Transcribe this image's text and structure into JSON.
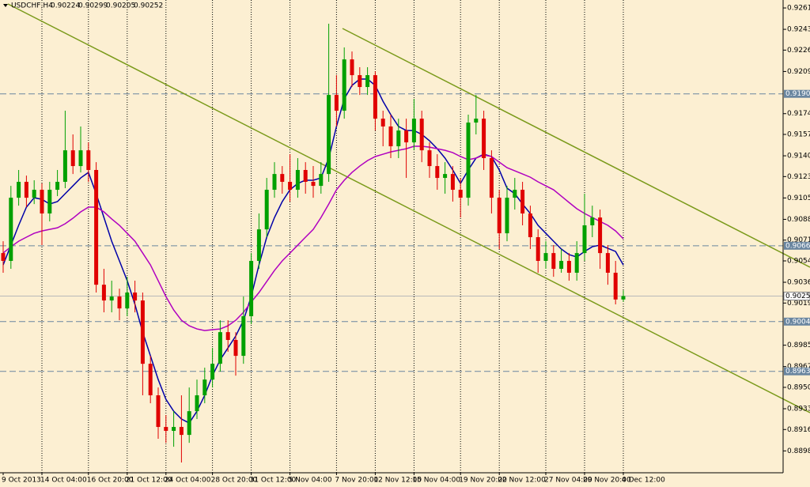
{
  "chart_data": {
    "type": "candlestick",
    "title": "USDCHF,H4",
    "categories": [
      "9 Oct 2013",
      null,
      null,
      null,
      null,
      "14 Oct 04:00",
      null,
      null,
      null,
      null,
      null,
      "16 Oct 20:00",
      null,
      null,
      null,
      null,
      "21 Oct 12:00",
      null,
      null,
      null,
      null,
      "24 Oct 04:00",
      null,
      null,
      null,
      null,
      null,
      "28 Oct 20:00",
      null,
      null,
      null,
      null,
      "31 Oct 12:00",
      null,
      null,
      null,
      null,
      "5 Nov 04:00",
      null,
      null,
      null,
      null,
      null,
      "7 Nov 20:00",
      null,
      null,
      null,
      null,
      "12 Nov 12:00",
      null,
      null,
      null,
      null,
      "15 Nov 04:00",
      null,
      null,
      null,
      null,
      null,
      "19 Nov 20:00",
      null,
      null,
      null,
      null,
      "22 Nov 12:00",
      null,
      null,
      null,
      null,
      null,
      "27 Nov 04:00",
      null,
      null,
      null,
      null,
      "29 Nov 20:00",
      null,
      null,
      null,
      null,
      "4 Dec 12:00"
    ],
    "ohlc": [
      [
        0.90604,
        0.90701,
        0.90443,
        0.9054
      ],
      [
        0.9054,
        0.91154,
        0.90475,
        0.91057
      ],
      [
        0.91057,
        0.91284,
        0.90992,
        0.91187
      ],
      [
        0.91187,
        0.91238,
        0.9098,
        0.91057
      ],
      [
        0.91057,
        0.912,
        0.91005,
        0.91122
      ],
      [
        0.91122,
        0.91174,
        0.90669,
        0.90928
      ],
      [
        0.90928,
        0.91187,
        0.90863,
        0.91122
      ],
      [
        0.91122,
        0.91284,
        0.9107,
        0.91187
      ],
      [
        0.91187,
        0.91769,
        0.91135,
        0.91445
      ],
      [
        0.91445,
        0.91575,
        0.91251,
        0.91316
      ],
      [
        0.91316,
        0.9164,
        0.91264,
        0.91445
      ],
      [
        0.91445,
        0.9151,
        0.91187,
        0.91284
      ],
      [
        0.91284,
        0.91348,
        0.90281,
        0.90345
      ],
      [
        0.90345,
        0.90475,
        0.90119,
        0.90216
      ],
      [
        0.90216,
        0.90378,
        0.90119,
        0.90248
      ],
      [
        0.90248,
        0.90313,
        0.90054,
        0.90151
      ],
      [
        0.90151,
        0.9041,
        0.90087,
        0.90281
      ],
      [
        0.90281,
        0.90378,
        0.90119,
        0.90216
      ],
      [
        0.90216,
        0.90281,
        0.8944,
        0.89698
      ],
      [
        0.89698,
        0.89763,
        0.89375,
        0.8944
      ],
      [
        0.8944,
        0.89504,
        0.89084,
        0.89181
      ],
      [
        0.89181,
        0.89278,
        0.89051,
        0.89149
      ],
      [
        0.89149,
        0.8931,
        0.89019,
        0.89181
      ],
      [
        0.89181,
        0.8944,
        0.8889,
        0.89116
      ],
      [
        0.89116,
        0.89504,
        0.89051,
        0.8931
      ],
      [
        0.8931,
        0.89569,
        0.89246,
        0.8944
      ],
      [
        0.8944,
        0.89666,
        0.89375,
        0.89569
      ],
      [
        0.89569,
        0.89828,
        0.89504,
        0.89698
      ],
      [
        0.89698,
        0.90054,
        0.89634,
        0.89957
      ],
      [
        0.89957,
        0.90054,
        0.89796,
        0.89893
      ],
      [
        0.89893,
        0.89957,
        0.89601,
        0.89763
      ],
      [
        0.89763,
        0.90248,
        0.89698,
        0.90087
      ],
      [
        0.90087,
        0.90604,
        0.90022,
        0.9054
      ],
      [
        0.9054,
        0.90928,
        0.90475,
        0.90798
      ],
      [
        0.90798,
        0.91219,
        0.90734,
        0.91122
      ],
      [
        0.91122,
        0.91348,
        0.91057,
        0.91251
      ],
      [
        0.91251,
        0.91316,
        0.9109,
        0.91187
      ],
      [
        0.91187,
        0.91413,
        0.91025,
        0.91122
      ],
      [
        0.91122,
        0.91381,
        0.91057,
        0.91284
      ],
      [
        0.91284,
        0.91348,
        0.9109,
        0.91187
      ],
      [
        0.91187,
        0.91316,
        0.91057,
        0.91154
      ],
      [
        0.91154,
        0.91348,
        0.9109,
        0.91251
      ],
      [
        0.91251,
        0.92481,
        0.91187,
        0.91898
      ],
      [
        0.91898,
        0.9206,
        0.9164,
        0.91769
      ],
      [
        0.91769,
        0.92287,
        0.91704,
        0.92189
      ],
      [
        0.92189,
        0.92254,
        0.91963,
        0.9206
      ],
      [
        0.9206,
        0.92125,
        0.91898,
        0.91963
      ],
      [
        0.91963,
        0.92125,
        0.91898,
        0.9206
      ],
      [
        0.9206,
        0.92092,
        0.91607,
        0.91704
      ],
      [
        0.91704,
        0.91769,
        0.91478,
        0.9164
      ],
      [
        0.9164,
        0.91737,
        0.91381,
        0.91478
      ],
      [
        0.91478,
        0.91704,
        0.91381,
        0.91607
      ],
      [
        0.91607,
        0.91704,
        0.91219,
        0.9151
      ],
      [
        0.9151,
        0.91866,
        0.91445,
        0.91704
      ],
      [
        0.91704,
        0.91769,
        0.91348,
        0.91445
      ],
      [
        0.91445,
        0.9151,
        0.91219,
        0.91316
      ],
      [
        0.91316,
        0.91413,
        0.91122,
        0.91219
      ],
      [
        0.91219,
        0.91348,
        0.9109,
        0.91251
      ],
      [
        0.91251,
        0.91316,
        0.91025,
        0.91122
      ],
      [
        0.91122,
        0.91219,
        0.90895,
        0.91057
      ],
      [
        0.91057,
        0.91737,
        0.90992,
        0.91672
      ],
      [
        0.91672,
        0.91898,
        0.91575,
        0.91704
      ],
      [
        0.91704,
        0.91769,
        0.91284,
        0.91381
      ],
      [
        0.91381,
        0.91445,
        0.90928,
        0.91057
      ],
      [
        0.91057,
        0.91122,
        0.90637,
        0.90766
      ],
      [
        0.90766,
        0.91154,
        0.90701,
        0.91057
      ],
      [
        0.91057,
        0.91219,
        0.9096,
        0.91122
      ],
      [
        0.91122,
        0.91187,
        0.90831,
        0.90928
      ],
      [
        0.90928,
        0.90992,
        0.90637,
        0.90734
      ],
      [
        0.90734,
        0.90798,
        0.90443,
        0.9054
      ],
      [
        0.9054,
        0.90701,
        0.90475,
        0.90604
      ],
      [
        0.90604,
        0.90669,
        0.9041,
        0.90475
      ],
      [
        0.90475,
        0.90637,
        0.90443,
        0.9054
      ],
      [
        0.9054,
        0.90604,
        0.90378,
        0.90443
      ],
      [
        0.90443,
        0.90701,
        0.90378,
        0.90604
      ],
      [
        0.90604,
        0.9109,
        0.9054,
        0.90831
      ],
      [
        0.90831,
        0.90992,
        0.90734,
        0.90895
      ],
      [
        0.90895,
        0.9096,
        0.90475,
        0.90604
      ],
      [
        0.90604,
        0.90669,
        0.90345,
        0.90443
      ],
      [
        0.90443,
        0.9054,
        0.90184,
        0.90224
      ],
      [
        0.90224,
        0.90299,
        0.90205,
        0.90252
      ]
    ],
    "up_color": "#00a000",
    "down_color": "#e00000",
    "lines": [
      {
        "color": "#0000a8",
        "values": [
          0.90507,
          0.90669,
          0.90831,
          0.9098,
          0.91057,
          0.91044,
          0.91005,
          0.91025,
          0.9109,
          0.91154,
          0.91219,
          0.91264,
          0.9109,
          0.90895,
          0.90701,
          0.9054,
          0.90378,
          0.90184,
          0.89957,
          0.89763,
          0.89569,
          0.89407,
          0.8931,
          0.89246,
          0.89213,
          0.8931,
          0.8944,
          0.89601,
          0.89731,
          0.89828,
          0.89925,
          0.90054,
          0.90248,
          0.90507,
          0.90734,
          0.90895,
          0.91025,
          0.91122,
          0.91174,
          0.912,
          0.912,
          0.91219,
          0.91381,
          0.9164,
          0.91866,
          0.91976,
          0.92028,
          0.92028,
          0.91976,
          0.91846,
          0.91737,
          0.9164,
          0.91607,
          0.91607,
          0.91575,
          0.91523,
          0.91458,
          0.91381,
          0.91284,
          0.91174,
          0.91284,
          0.91381,
          0.91413,
          0.91394,
          0.91284,
          0.91135,
          0.9109,
          0.91005,
          0.90928,
          0.90831,
          0.90766,
          0.90701,
          0.90637,
          0.90591,
          0.90572,
          0.90617,
          0.90656,
          0.90669,
          0.90643,
          0.90617,
          0.90507
        ]
      },
      {
        "color": "#b000c0",
        "values": [
          0.90604,
          0.90656,
          0.90701,
          0.90734,
          0.90766,
          0.90785,
          0.90798,
          0.90811,
          0.90844,
          0.90889,
          0.90941,
          0.9098,
          0.9098,
          0.90941,
          0.90883,
          0.90831,
          0.90766,
          0.90701,
          0.90604,
          0.90507,
          0.90378,
          0.90248,
          0.90138,
          0.90054,
          0.90009,
          0.89983,
          0.8997,
          0.89977,
          0.89983,
          0.90009,
          0.90054,
          0.90119,
          0.90203,
          0.90281,
          0.90371,
          0.90462,
          0.9054,
          0.90604,
          0.90669,
          0.90734,
          0.90798,
          0.90895,
          0.91005,
          0.91122,
          0.912,
          0.91264,
          0.91316,
          0.91361,
          0.91394,
          0.91413,
          0.91432,
          0.91445,
          0.91458,
          0.91478,
          0.91478,
          0.91471,
          0.91458,
          0.91445,
          0.91426,
          0.91394,
          0.91368,
          0.91381,
          0.91407,
          0.91394,
          0.91348,
          0.91303,
          0.91277,
          0.91251,
          0.91225,
          0.91187,
          0.91154,
          0.91122,
          0.9107,
          0.91018,
          0.90967,
          0.90928,
          0.90895,
          0.90863,
          0.90831,
          0.90785,
          0.90721
        ]
      }
    ],
    "levels": [
      0.91907,
      0.90664,
      0.90043,
      0.89636
    ],
    "level_color": "#6a86a0",
    "ylim": [
      0.88806,
      0.92675
    ],
    "yticks": [
      {
        "value": 0.9261,
        "label": "0.92610"
      },
      0.92435,
      0.92265,
      {
        "value": 0.9209,
        "label": "0.92090"
      },
      0.91745,
      0.91575,
      {
        "value": 0.914,
        "label": "0.91400"
      },
      {
        "value": 0.9123,
        "label": "0.91230"
      },
      0.91055,
      {
        "value": 0.9088,
        "label": "0.90880"
      },
      {
        "value": 0.9071,
        "label": "0.90710"
      },
      {
        "value": 0.9054,
        "label": "0.90540"
      },
      0.90365,
      0.90195,
      {
        "value": 0.8985,
        "label": "0.89850"
      },
      0.89675,
      0.89505,
      {
        "value": 0.8933,
        "label": "0.89330"
      },
      {
        "value": 0.8916,
        "label": "0.89160"
      },
      0.88985
    ]
  }
}
